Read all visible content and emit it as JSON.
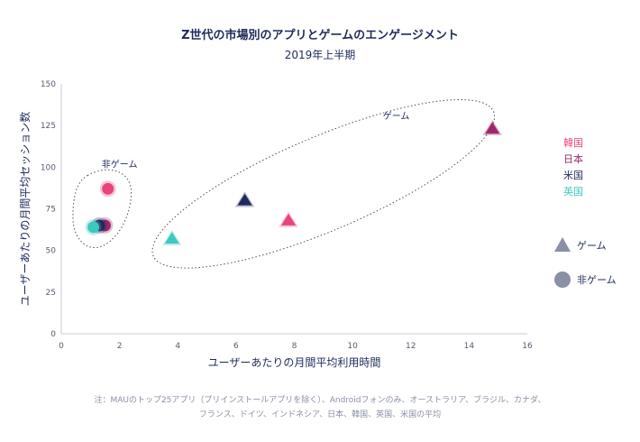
{
  "chart_data": {
    "type": "scatter",
    "title": "Z世代の市場別のアプリとゲームのエンゲージメント",
    "subtitle": "2019年上半期",
    "xlabel": "ユーザーあたりの月間平均利用時間",
    "ylabel": "ユーザーあたりの月間平均セッション数",
    "xlim": [
      0,
      16
    ],
    "ylim": [
      0,
      150
    ],
    "x_ticks": [
      0,
      2,
      4,
      6,
      8,
      10,
      12,
      14,
      16
    ],
    "y_ticks": [
      0,
      25,
      50,
      75,
      100,
      125,
      150
    ],
    "grid": false,
    "colors": {
      "韓国": "#e8457a",
      "日本": "#9b2a6b",
      "米国": "#1f2a5a",
      "英国": "#3ec8c0"
    },
    "markers": {
      "ゲーム": "triangle",
      "非ゲーム": "circle"
    },
    "series": [
      {
        "name": "ゲーム",
        "marker": "triangle",
        "points": [
          {
            "market": "韓国",
            "x": 7.8,
            "y": 68
          },
          {
            "market": "日本",
            "x": 14.8,
            "y": 123
          },
          {
            "market": "米国",
            "x": 6.3,
            "y": 80
          },
          {
            "market": "英国",
            "x": 3.8,
            "y": 57
          }
        ]
      },
      {
        "name": "非ゲーム",
        "marker": "circle",
        "points": [
          {
            "market": "韓国",
            "x": 1.6,
            "y": 87
          },
          {
            "market": "日本",
            "x": 1.5,
            "y": 65
          },
          {
            "market": "米国",
            "x": 1.3,
            "y": 65
          },
          {
            "market": "英国",
            "x": 1.1,
            "y": 64
          }
        ]
      }
    ],
    "cluster_labels": {
      "game": "ゲーム",
      "nongame": "非ゲーム"
    },
    "legend_markets": [
      "韓国",
      "日本",
      "米国",
      "英国"
    ],
    "legend_types": [
      {
        "label": "ゲーム",
        "marker": "triangle"
      },
      {
        "label": "非ゲーム",
        "marker": "circle"
      }
    ],
    "legend_marker_color": "#8a90a6"
  },
  "footnote": {
    "line1": "注：MAUのトップ25アプリ（プリインストールアプリを除く）、Androidフォンのみ、オーストラリア、ブラジル、カナダ、",
    "line2": "フランス、ドイツ、インドネシア、日本、韓国、英国、米国の平均"
  }
}
